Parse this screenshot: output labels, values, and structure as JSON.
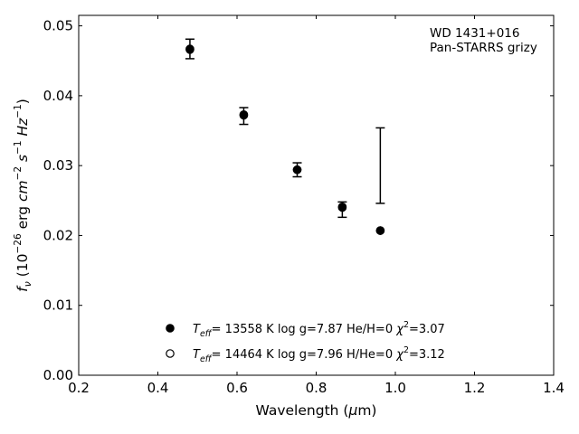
{
  "chart_data": {
    "type": "scatter",
    "title": "",
    "xlabel": "Wavelength (μm)",
    "ylabel": "fν (10⁻²⁶ erg cm⁻² s⁻¹ Hz⁻¹)",
    "xlim": [
      0.2,
      1.4
    ],
    "ylim": [
      0.0,
      0.0515
    ],
    "xticks": [
      "0.2",
      "0.4",
      "0.6",
      "0.8",
      "1.0",
      "1.2",
      "1.4"
    ],
    "yticks": [
      "0.00",
      "0.01",
      "0.02",
      "0.03",
      "0.04",
      "0.05"
    ],
    "annotation": [
      "WD 1431+016",
      "Pan-STARRS grizy"
    ],
    "observed": {
      "x": [
        0.481,
        0.617,
        0.752,
        0.866,
        0.962
      ],
      "y": [
        0.0467,
        0.0371,
        0.0294,
        0.0237,
        0.03
      ],
      "err": [
        0.0014,
        0.0012,
        0.001,
        0.0011,
        0.0054
      ]
    },
    "series": [
      {
        "name": "T_eff= 13558 K  log g=7.87  He/H=0  χ²=3.07",
        "marker": "filled",
        "x": [
          0.481,
          0.617,
          0.752,
          0.866,
          0.962
        ],
        "y": [
          0.0467,
          0.0373,
          0.0294,
          0.0241,
          0.0207
        ]
      },
      {
        "name": "T_eff= 14464 K  log g=7.96  H/He=0  χ²=3.12",
        "marker": "open",
        "x": [
          0.481,
          0.617,
          0.752,
          0.866,
          0.962
        ],
        "y": [
          0.0466,
          0.0372,
          0.0294,
          0.024,
          0.0207
        ]
      }
    ],
    "legend": [
      {
        "prefix": "T",
        "sub": "eff",
        "text": "= 13558 K  log g=7.87  He/H=0  ",
        "chi": "χ",
        "chi_sup": "2",
        "chi_val": "=3.07"
      },
      {
        "prefix": "T",
        "sub": "eff",
        "text": "= 14464 K  log g=7.96  H/He=0  ",
        "chi": "χ",
        "chi_sup": "2",
        "chi_val": "=3.12"
      }
    ],
    "legend_position": "lower-center",
    "grid": false,
    "colors": {
      "marker": "#000000",
      "background": "#ffffff"
    }
  }
}
